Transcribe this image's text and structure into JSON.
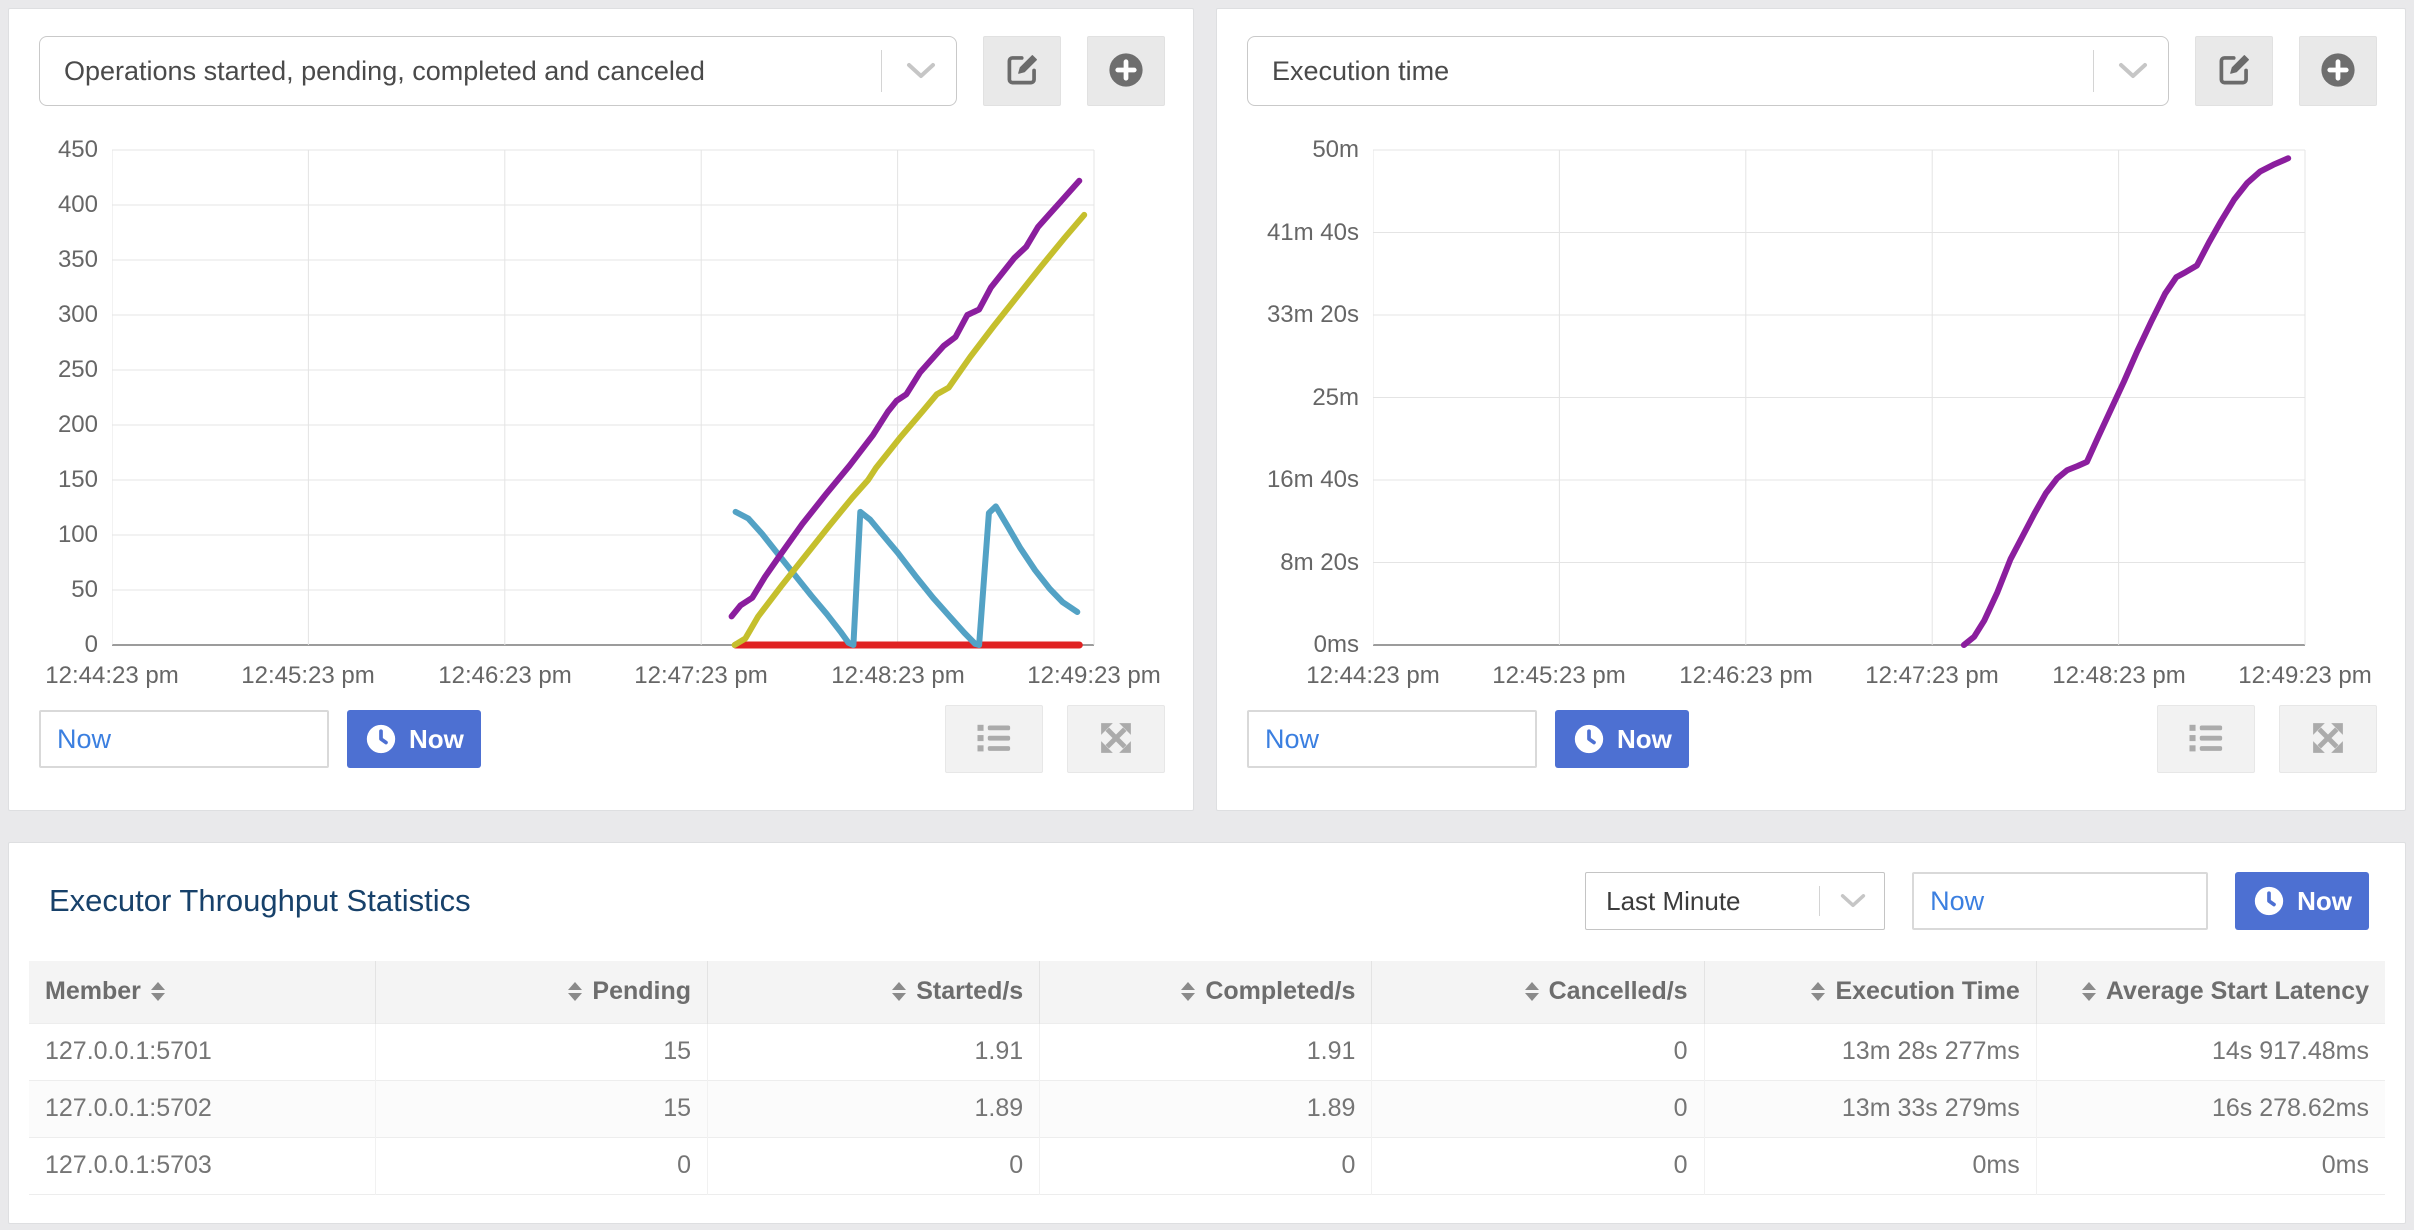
{
  "colors": {
    "page_background": "#e9e9eb",
    "accent_blue": "#4d70d2",
    "link_blue": "#3b7fe0",
    "title_navy": "#17416a",
    "series_purple": "#8b1e9e",
    "series_yellow": "#c5bf2d",
    "series_teal": "#53a2c5",
    "series_red": "#e02222"
  },
  "left_panel": {
    "selected_metric": "Operations started, pending, completed and canceled",
    "time_field_value": "Now",
    "now_button_label": "Now"
  },
  "right_panel": {
    "selected_metric": "Execution time",
    "time_field_value": "Now",
    "now_button_label": "Now"
  },
  "chart_data": [
    {
      "type": "line",
      "title": "Operations started, pending, completed and canceled",
      "x_domain": [
        "12:44:23 pm",
        "12:49:23 pm"
      ],
      "x_unit": "fraction of x-axis from 12:44:23 pm (0) to 12:49:23 pm (1)",
      "x_ticks": [
        "12:44:23 pm",
        "12:45:23 pm",
        "12:46:23 pm",
        "12:47:23 pm",
        "12:48:23 pm",
        "12:49:23 pm"
      ],
      "y_ticks": [
        {
          "label": "450",
          "value": 450
        },
        {
          "label": "400",
          "value": 400
        },
        {
          "label": "350",
          "value": 350
        },
        {
          "label": "300",
          "value": 300
        },
        {
          "label": "250",
          "value": 250
        },
        {
          "label": "200",
          "value": 200
        },
        {
          "label": "150",
          "value": 150
        },
        {
          "label": "100",
          "value": 100
        },
        {
          "label": "50",
          "value": 50
        },
        {
          "label": "0",
          "value": 0
        }
      ],
      "ylim": [
        0,
        450
      ],
      "grid": true,
      "legend": "none",
      "series": [
        {
          "name": "cancelled",
          "color": "#e02222",
          "width": 7,
          "points": [
            [
              0.635,
              0
            ],
            [
              0.985,
              0
            ]
          ]
        },
        {
          "name": "pending",
          "color": "#53a2c5",
          "width": 6,
          "points": [
            [
              0.635,
              121
            ],
            [
              0.648,
              115
            ],
            [
              0.662,
              101
            ],
            [
              0.678,
              83
            ],
            [
              0.695,
              64
            ],
            [
              0.712,
              45
            ],
            [
              0.728,
              28
            ],
            [
              0.742,
              12
            ],
            [
              0.75,
              2
            ],
            [
              0.755,
              0
            ],
            [
              0.762,
              121
            ],
            [
              0.772,
              114
            ],
            [
              0.784,
              101
            ],
            [
              0.8,
              84
            ],
            [
              0.818,
              63
            ],
            [
              0.836,
              43
            ],
            [
              0.854,
              25
            ],
            [
              0.868,
              11
            ],
            [
              0.879,
              1
            ],
            [
              0.883,
              0
            ],
            [
              0.893,
              120
            ],
            [
              0.9,
              126
            ],
            [
              0.912,
              108
            ],
            [
              0.925,
              88
            ],
            [
              0.94,
              68
            ],
            [
              0.955,
              51
            ],
            [
              0.968,
              39
            ],
            [
              0.983,
              30
            ]
          ]
        },
        {
          "name": "completed",
          "color": "#c5bf2d",
          "width": 6,
          "points": [
            [
              0.634,
              0
            ],
            [
              0.645,
              6
            ],
            [
              0.658,
              26
            ],
            [
              0.682,
              54
            ],
            [
              0.706,
              81
            ],
            [
              0.73,
              108
            ],
            [
              0.754,
              134
            ],
            [
              0.77,
              150
            ],
            [
              0.778,
              161
            ],
            [
              0.802,
              188
            ],
            [
              0.826,
              213
            ],
            [
              0.84,
              228
            ],
            [
              0.852,
              234
            ],
            [
              0.874,
              262
            ],
            [
              0.898,
              290
            ],
            [
              0.922,
              317
            ],
            [
              0.946,
              344
            ],
            [
              0.97,
              370
            ],
            [
              0.99,
              391
            ]
          ]
        },
        {
          "name": "started",
          "color": "#8b1e9e",
          "width": 6,
          "points": [
            [
              0.631,
              26
            ],
            [
              0.64,
              36
            ],
            [
              0.652,
              43
            ],
            [
              0.665,
              62
            ],
            [
              0.679,
              80
            ],
            [
              0.703,
              110
            ],
            [
              0.727,
              137
            ],
            [
              0.751,
              163
            ],
            [
              0.775,
              191
            ],
            [
              0.79,
              212
            ],
            [
              0.799,
              222
            ],
            [
              0.809,
              228
            ],
            [
              0.823,
              248
            ],
            [
              0.847,
              272
            ],
            [
              0.859,
              280
            ],
            [
              0.871,
              300
            ],
            [
              0.883,
              305
            ],
            [
              0.895,
              325
            ],
            [
              0.919,
              352
            ],
            [
              0.931,
              362
            ],
            [
              0.943,
              380
            ],
            [
              0.955,
              392
            ],
            [
              0.967,
              404
            ],
            [
              0.985,
              422
            ]
          ]
        }
      ]
    },
    {
      "type": "line",
      "title": "Execution time",
      "x_domain": [
        "12:44:23 pm",
        "12:49:23 pm"
      ],
      "x_unit": "fraction of x-axis from 12:44:23 pm (0) to 12:49:23 pm (1)",
      "x_ticks": [
        "12:44:23 pm",
        "12:45:23 pm",
        "12:46:23 pm",
        "12:47:23 pm",
        "12:48:23 pm",
        "12:49:23 pm"
      ],
      "y_unit": "seconds",
      "y_ticks": [
        {
          "label": "50m",
          "value": 3000
        },
        {
          "label": "41m 40s",
          "value": 2500
        },
        {
          "label": "33m 20s",
          "value": 2000
        },
        {
          "label": "25m",
          "value": 1500
        },
        {
          "label": "16m 40s",
          "value": 1000
        },
        {
          "label": "8m 20s",
          "value": 500
        },
        {
          "label": "0ms",
          "value": 0
        }
      ],
      "ylim": [
        0,
        3000
      ],
      "grid": true,
      "legend": "none",
      "series": [
        {
          "name": "execution-time",
          "color": "#8b1e9e",
          "width": 6,
          "points": [
            [
              0.634,
              0
            ],
            [
              0.645,
              50
            ],
            [
              0.656,
              150
            ],
            [
              0.67,
              320
            ],
            [
              0.684,
              520
            ],
            [
              0.697,
              660
            ],
            [
              0.71,
              800
            ],
            [
              0.722,
              920
            ],
            [
              0.734,
              1010
            ],
            [
              0.745,
              1060
            ],
            [
              0.756,
              1085
            ],
            [
              0.766,
              1110
            ],
            [
              0.778,
              1260
            ],
            [
              0.792,
              1430
            ],
            [
              0.806,
              1600
            ],
            [
              0.82,
              1780
            ],
            [
              0.835,
              1960
            ],
            [
              0.85,
              2130
            ],
            [
              0.862,
              2230
            ],
            [
              0.872,
              2260
            ],
            [
              0.884,
              2300
            ],
            [
              0.897,
              2440
            ],
            [
              0.91,
              2570
            ],
            [
              0.924,
              2700
            ],
            [
              0.938,
              2800
            ],
            [
              0.952,
              2870
            ],
            [
              0.966,
              2910
            ],
            [
              0.982,
              2950
            ]
          ]
        }
      ]
    }
  ],
  "stats_panel": {
    "title": "Executor Throughput Statistics",
    "period_select_value": "Last Minute",
    "time_field_value": "Now",
    "now_button_label": "Now",
    "columns": [
      "Member",
      "Pending",
      "Started/s",
      "Completed/s",
      "Cancelled/s",
      "Execution Time",
      "Average Start Latency"
    ],
    "rows": [
      [
        "127.0.0.1:5701",
        "15",
        "1.91",
        "1.91",
        "0",
        "13m 28s 277ms",
        "14s 917.48ms"
      ],
      [
        "127.0.0.1:5702",
        "15",
        "1.89",
        "1.89",
        "0",
        "13m 33s 279ms",
        "16s 278.62ms"
      ],
      [
        "127.0.0.1:5703",
        "0",
        "0",
        "0",
        "0",
        "0ms",
        "0ms"
      ]
    ]
  }
}
